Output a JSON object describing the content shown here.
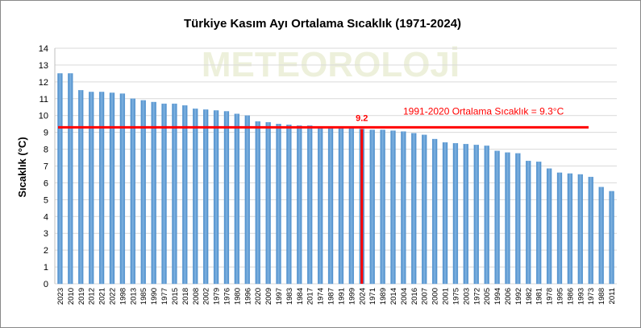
{
  "chart_data": {
    "type": "bar",
    "title": "Türkiye Kasım Ayı Ortalama Sıcaklık (1971-2024)",
    "y_label": "Sıcaklık (°C)",
    "watermark": "METEOROLOJİ",
    "categories": [
      "2023",
      "2010",
      "2019",
      "2012",
      "2021",
      "2022",
      "1998",
      "2013",
      "1985",
      "1990",
      "1977",
      "2015",
      "2018",
      "2008",
      "2002",
      "1979",
      "1976",
      "1980",
      "1996",
      "2020",
      "2009",
      "1997",
      "1983",
      "1984",
      "2017",
      "1974",
      "1987",
      "1991",
      "1999",
      "2024",
      "1971",
      "1989",
      "2014",
      "2004",
      "2016",
      "2007",
      "2000",
      "2001",
      "1975",
      "2003",
      "1972",
      "2005",
      "1994",
      "2006",
      "1992",
      "1982",
      "1981",
      "1978",
      "1995",
      "1986",
      "1993",
      "1973",
      "1988",
      "2011"
    ],
    "values": [
      12.5,
      12.5,
      11.5,
      11.4,
      11.4,
      11.35,
      11.3,
      11.0,
      10.9,
      10.8,
      10.7,
      10.7,
      10.6,
      10.4,
      10.35,
      10.3,
      10.25,
      10.1,
      10.0,
      9.65,
      9.6,
      9.5,
      9.45,
      9.4,
      9.4,
      9.35,
      9.35,
      9.3,
      9.3,
      9.2,
      9.15,
      9.15,
      9.1,
      9.05,
      8.95,
      8.85,
      8.6,
      8.4,
      8.35,
      8.3,
      8.25,
      8.2,
      7.9,
      7.8,
      7.75,
      7.3,
      7.25,
      6.85,
      6.6,
      6.55,
      6.5,
      6.35,
      5.75,
      5.5
    ],
    "color": "#5b9bd5",
    "ylim": [
      0,
      14
    ],
    "yticks": [
      0,
      1,
      2,
      3,
      4,
      5,
      6,
      7,
      8,
      9,
      10,
      11,
      12,
      13,
      14
    ],
    "grid": true,
    "reference": {
      "value": 9.3,
      "label": "1991-2020 Ortalama Sıcaklık = 9.3°C",
      "color": "#ff0000"
    },
    "highlight": {
      "category": "2024",
      "label": "9.2",
      "color": "#ff0000"
    }
  }
}
